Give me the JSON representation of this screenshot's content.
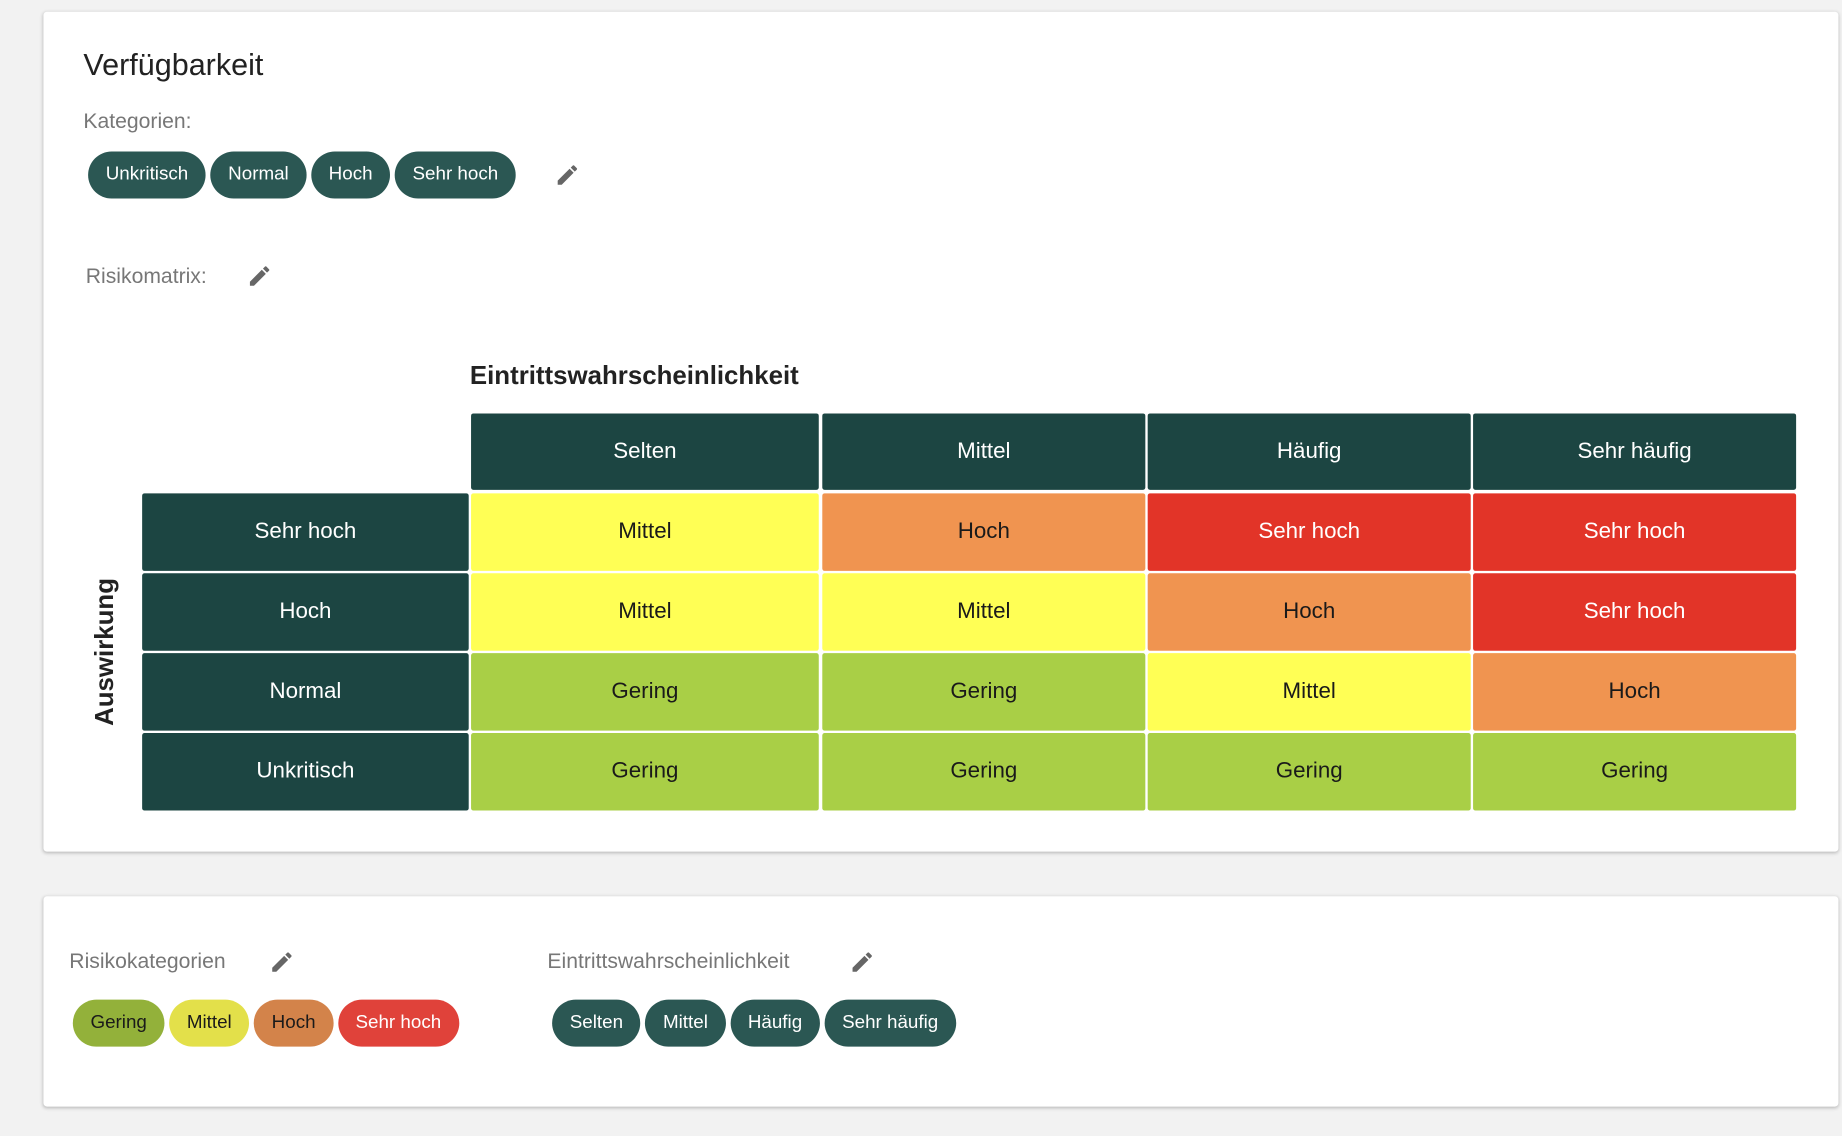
{
  "card1": {
    "title": "Verfügbarkeit",
    "categories_label": "Kategorien:",
    "categories": [
      "Unkritisch",
      "Normal",
      "Hoch",
      "Sehr hoch"
    ],
    "matrix_label": "Risikomatrix:",
    "matrix": {
      "column_title": "Eintrittswahrscheinlichkeit",
      "row_title": "Auswirkung",
      "columns": [
        "Selten",
        "Mittel",
        "Häufig",
        "Sehr häufig"
      ],
      "rows": [
        {
          "label": "Sehr hoch",
          "cells": [
            "Mittel",
            "Hoch",
            "Sehr hoch",
            "Sehr hoch"
          ]
        },
        {
          "label": "Hoch",
          "cells": [
            "Mittel",
            "Mittel",
            "Hoch",
            "Sehr hoch"
          ]
        },
        {
          "label": "Normal",
          "cells": [
            "Gering",
            "Gering",
            "Mittel",
            "Hoch"
          ]
        },
        {
          "label": "Unkritisch",
          "cells": [
            "Gering",
            "Gering",
            "Gering",
            "Gering"
          ]
        }
      ]
    }
  },
  "card2": {
    "risk_label": "Risikokategorien",
    "risk_categories": [
      {
        "name": "Gering",
        "chip_color": "#93b13a",
        "cell_color": "#a9cf46",
        "text_color": "#1a1a1a"
      },
      {
        "name": "Mittel",
        "chip_color": "#e3e04a",
        "cell_color": "#ffff55",
        "text_color": "#1a1a1a"
      },
      {
        "name": "Hoch",
        "chip_color": "#d3834a",
        "cell_color": "#f09450",
        "text_color": "#1a1a1a"
      },
      {
        "name": "Sehr hoch",
        "chip_color": "#e0423a",
        "cell_color": "#e23428",
        "text_color": "#ffffff"
      }
    ],
    "likelihood_label": "Eintrittswahrscheinlichkeit",
    "likelihood": [
      "Selten",
      "Mittel",
      "Häufig",
      "Sehr häufig"
    ]
  }
}
